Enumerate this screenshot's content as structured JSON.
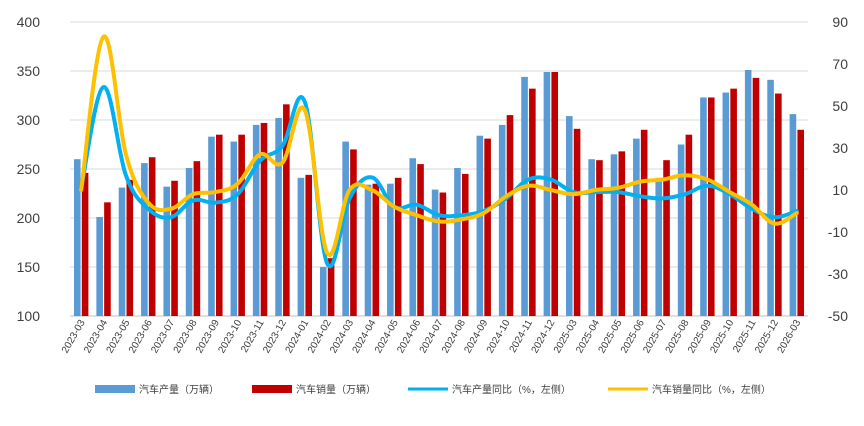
{
  "chart_data": {
    "type": "bar",
    "categories": [
      "2023-03",
      "2023-04",
      "2023-05",
      "2023-06",
      "2023-07",
      "2023-08",
      "2023-09",
      "2023-10",
      "2023-11",
      "2023-12",
      "2024-01",
      "2024-02",
      "2024-03",
      "2024-04",
      "2024-05",
      "2024-06",
      "2024-07",
      "2024-08",
      "2024-09",
      "2024-10",
      "2024-11",
      "2024-12",
      "2025-03",
      "2025-04",
      "2025-05",
      "2025-06",
      "2025-07",
      "2025-08",
      "2025-09",
      "2025-10",
      "2025-11",
      "2025-12",
      "2026-03"
    ],
    "series": [
      {
        "name": "汽车产量（万辆）",
        "type": "bar",
        "axis": "left",
        "color": "#5B9BD5",
        "values": [
          260,
          201,
          231,
          256,
          232,
          251,
          283,
          278,
          295,
          302,
          241,
          150,
          278,
          234,
          235,
          261,
          229,
          251,
          284,
          295,
          344,
          349,
          304,
          260,
          265,
          281,
          241,
          275,
          323,
          328,
          351,
          341,
          306
        ]
      },
      {
        "name": "汽车销量（万辆）",
        "type": "bar",
        "axis": "left",
        "color": "#C00000",
        "values": [
          246,
          216,
          239,
          262,
          238,
          258,
          285,
          285,
          297,
          316,
          244,
          159,
          270,
          235,
          241,
          255,
          226,
          245,
          281,
          305,
          332,
          349,
          291,
          259,
          268,
          290,
          259,
          285,
          323,
          332,
          343,
          327,
          290
        ]
      },
      {
        "name": "汽车产量同比（%，左侧）",
        "type": "line",
        "axis": "right",
        "color": "#00B0F0",
        "values": [
          11,
          59,
          17,
          1,
          -3,
          5,
          4,
          8,
          24,
          31,
          52,
          -25,
          6,
          16,
          2,
          3,
          -2,
          -2,
          0,
          6,
          15,
          15,
          9,
          9,
          9,
          7,
          6,
          8,
          12,
          8,
          1,
          -3,
          0
        ]
      },
      {
        "name": "汽车销量同比（%，左侧）",
        "type": "line",
        "axis": "right",
        "color": "#FFC000",
        "values": [
          10,
          83,
          27,
          4,
          1,
          8,
          9,
          13,
          27,
          23,
          48,
          -20,
          10,
          10,
          2,
          -2,
          -5,
          -4,
          -1,
          7,
          12,
          10,
          8,
          10,
          11,
          14,
          15,
          17,
          15,
          9,
          3,
          -6,
          -1
        ]
      }
    ],
    "y_left": {
      "min": 100,
      "max": 400,
      "ticks": [
        100,
        150,
        200,
        250,
        300,
        350,
        400
      ]
    },
    "y_right": {
      "min": -50,
      "max": 90,
      "ticks": [
        -50,
        -30,
        -10,
        10,
        30,
        50,
        70,
        90
      ]
    },
    "grid": "horizontal",
    "legend_position": "bottom",
    "title": "",
    "xlabel": "",
    "ylabel": ""
  }
}
